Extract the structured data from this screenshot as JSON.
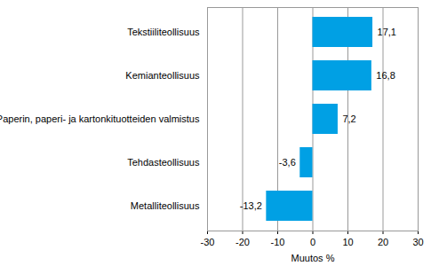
{
  "chart_data": {
    "type": "bar",
    "orientation": "horizontal",
    "categories": [
      "Tekstiiliteollisuus",
      "Kemianteollisuus",
      "Paperin, paperi- ja kartonkituotteiden valmistus",
      "Tehdasteollisuus",
      "Metalliteollisuus"
    ],
    "values": [
      17.1,
      16.8,
      7.2,
      -3.6,
      -13.2
    ],
    "value_labels": [
      "17,1",
      "16,8",
      "7,2",
      "-3,6",
      "-13,2"
    ],
    "data_labels": true,
    "color": "#00a0e4",
    "xlabel": "Muutos %",
    "xlim": [
      -30,
      30
    ],
    "xticks": [
      -30,
      -20,
      -10,
      0,
      10,
      20,
      30
    ],
    "grid": true
  }
}
